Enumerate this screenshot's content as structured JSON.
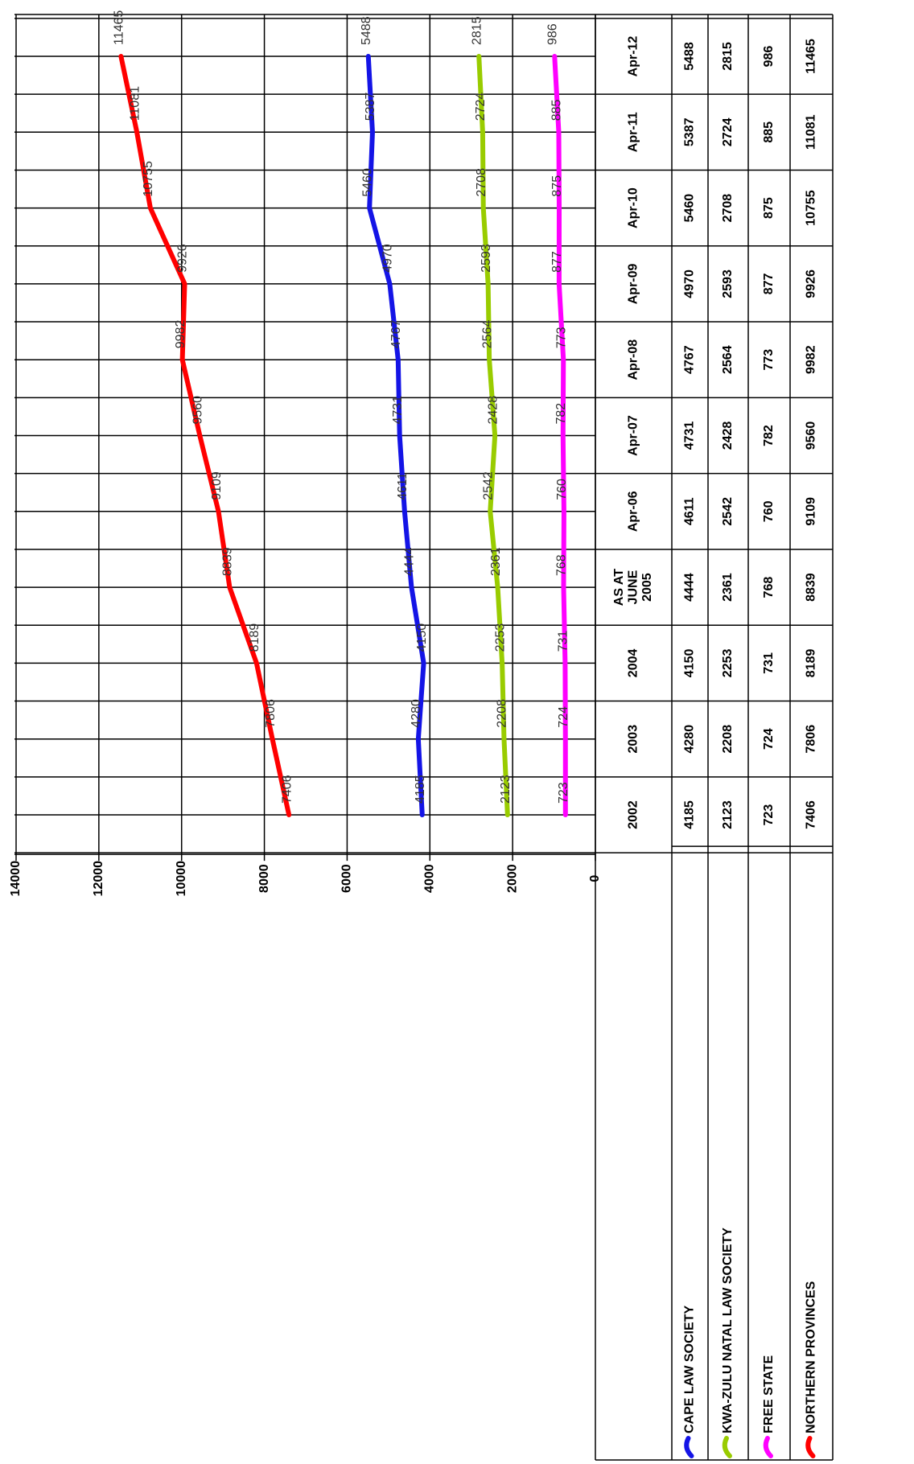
{
  "chart_data": {
    "type": "line",
    "categories": [
      "2002",
      "2003",
      "2004",
      "AS AT\nJUNE\n2005",
      "Apr-06",
      "Apr-07",
      "Apr-08",
      "Apr-09",
      "Apr-10",
      "Apr-11",
      "Apr-12"
    ],
    "series": [
      {
        "name": "CAPE LAW SOCIETY",
        "color": "#1414e6",
        "values": [
          4185,
          4280,
          4150,
          4444,
          4611,
          4731,
          4767,
          4970,
          5460,
          5387,
          5488
        ]
      },
      {
        "name": "KWA-ZULU NATAL LAW SOCIETY",
        "color": "#99cc00",
        "values": [
          2123,
          2208,
          2253,
          2361,
          2542,
          2428,
          2564,
          2593,
          2708,
          2724,
          2815
        ]
      },
      {
        "name": "FREE STATE",
        "color": "#ff00ff",
        "values": [
          723,
          724,
          731,
          768,
          760,
          782,
          773,
          877,
          875,
          885,
          986
        ]
      },
      {
        "name": "NORTHERN PROVINCES",
        "color": "#ff0000",
        "values": [
          7406,
          7806,
          8189,
          8839,
          9109,
          9560,
          9982,
          9926,
          10755,
          11081,
          11465
        ]
      }
    ],
    "ylim": [
      0,
      14000
    ],
    "yticks": [
      0,
      2000,
      4000,
      6000,
      8000,
      10000,
      12000,
      14000
    ],
    "grid": true
  }
}
